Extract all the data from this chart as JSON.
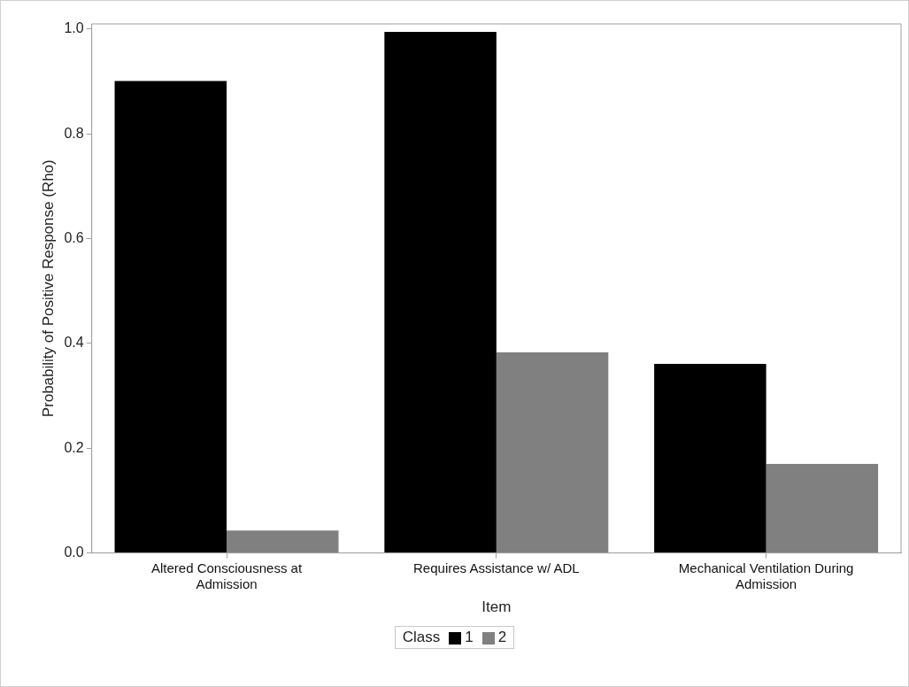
{
  "chart_data": {
    "type": "bar",
    "xlabel": "Item",
    "ylabel": "Probability of Positive Response (Rho)",
    "legend_title": "Class",
    "legend": "bottom",
    "grid": false,
    "categories": [
      "Altered Consciousness at Admission",
      "Requires Assistance w/ ADL",
      "Mechanical Ventilation During Admission"
    ],
    "series": [
      {
        "name": "1",
        "color": "#000000",
        "values": [
          0.901,
          0.995,
          0.361
        ]
      },
      {
        "name": "2",
        "color": "#808080",
        "values": [
          0.043,
          0.383,
          0.17
        ]
      }
    ],
    "ylim": [
      0,
      1.01
    ],
    "yticks": [
      {
        "value": 0,
        "label": "0.0"
      },
      {
        "value": 0.2,
        "label": "0.2"
      },
      {
        "value": 0.4,
        "label": "0.4"
      },
      {
        "value": 0.6,
        "label": "0.6"
      },
      {
        "value": 0.8,
        "label": "0.8"
      },
      {
        "value": 1,
        "label": "1.0"
      }
    ]
  }
}
